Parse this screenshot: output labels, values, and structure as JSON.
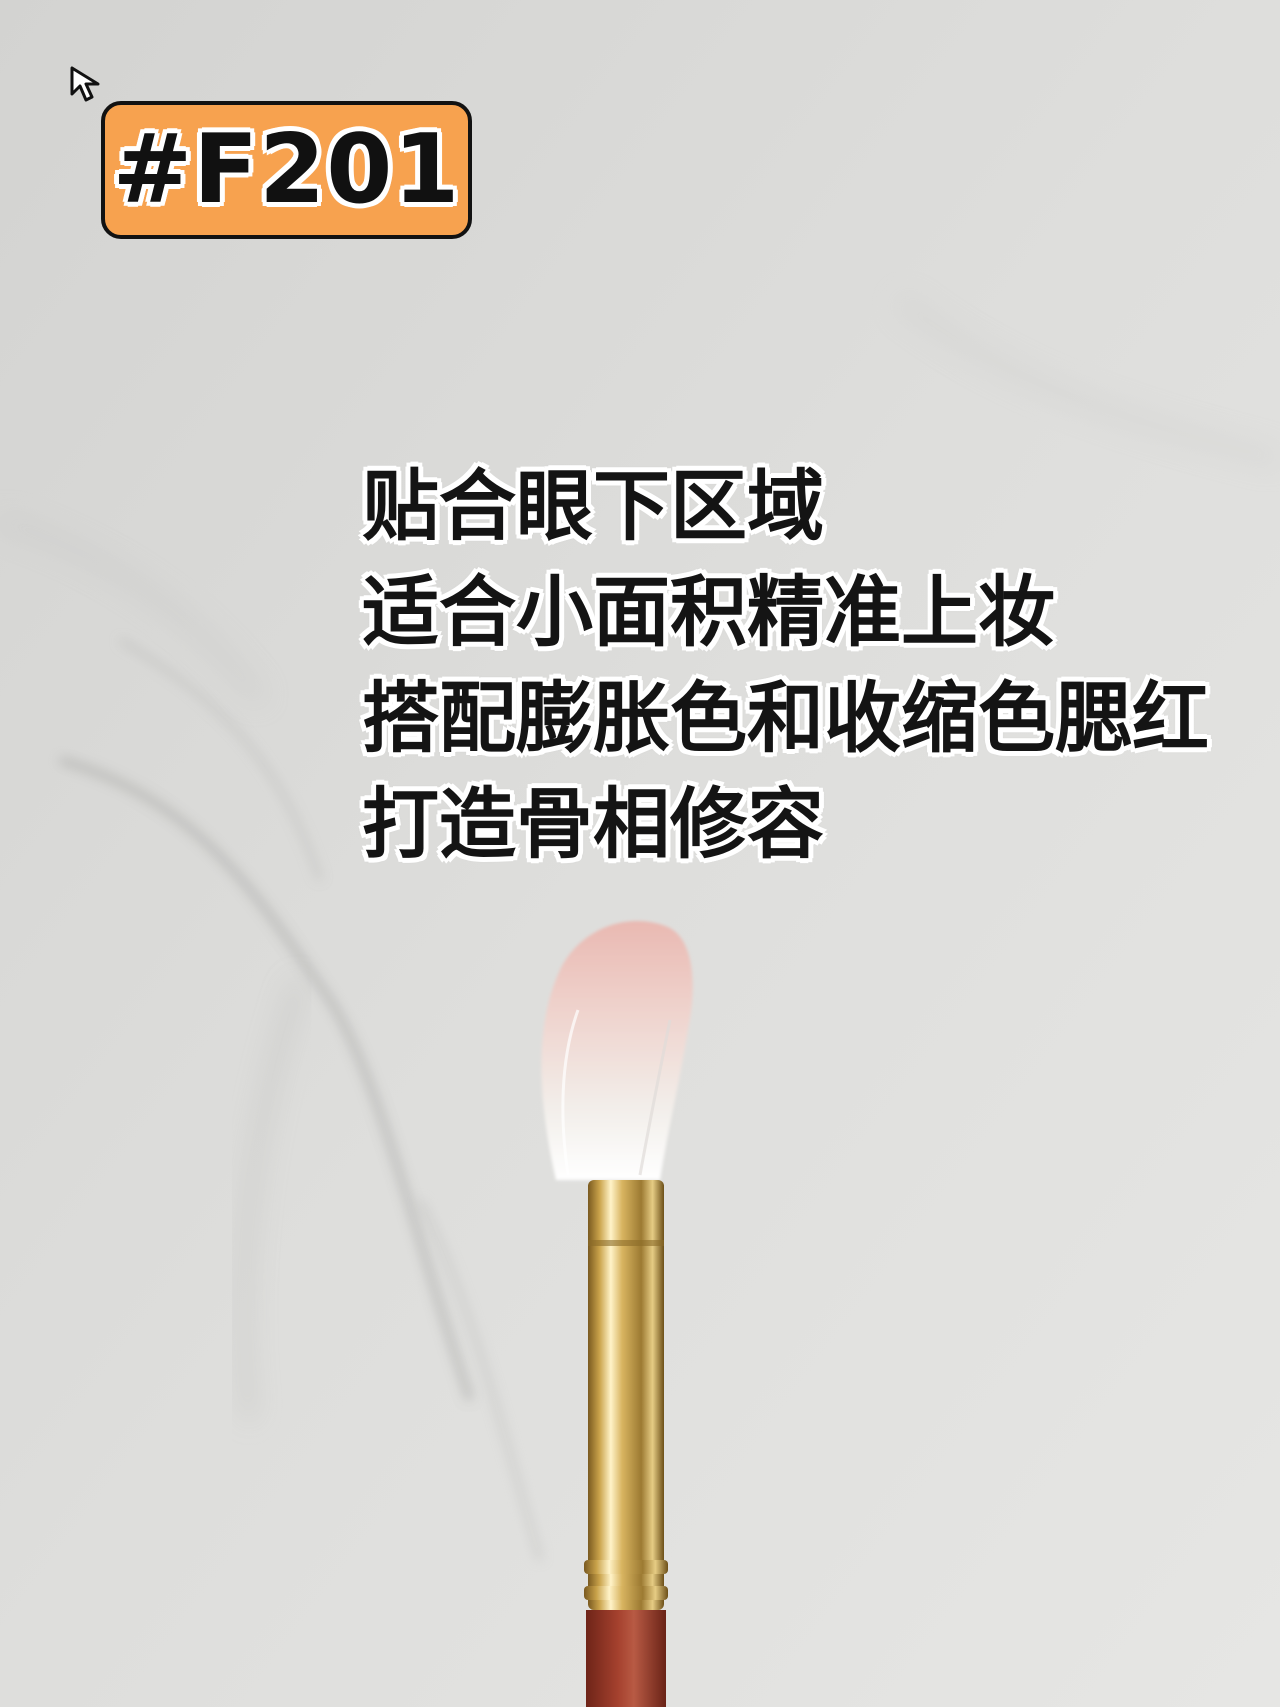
{
  "badge": {
    "label": "#F201",
    "color": "#f7a24f"
  },
  "caption": {
    "lines": [
      "贴合眼下区域",
      "适合小面积精准上妆",
      "搭配膨胀色和收缩色腮红",
      "打造骨相修容"
    ]
  },
  "icons": {
    "cursor": "cursor-pointer-icon"
  },
  "colors": {
    "background": "#dcdcda",
    "bristle_tip": "#e8b9b3",
    "ferrule": "#c9a24a",
    "handle": "#9a3b2a"
  }
}
